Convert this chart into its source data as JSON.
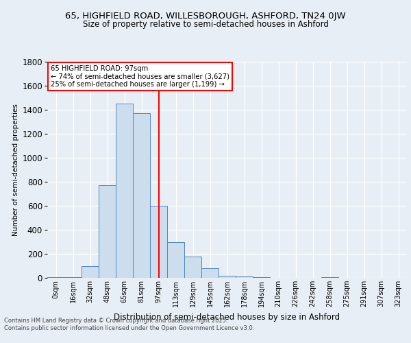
{
  "title_line1": "65, HIGHFIELD ROAD, WILLESBOROUGH, ASHFORD, TN24 0JW",
  "title_line2": "Size of property relative to semi-detached houses in Ashford",
  "xlabel": "Distribution of semi-detached houses by size in Ashford",
  "ylabel": "Number of semi-detached properties",
  "categories": [
    "0sqm",
    "16sqm",
    "32sqm",
    "48sqm",
    "65sqm",
    "81sqm",
    "97sqm",
    "113sqm",
    "129sqm",
    "145sqm",
    "162sqm",
    "178sqm",
    "194sqm",
    "210sqm",
    "226sqm",
    "242sqm",
    "258sqm",
    "275sqm",
    "291sqm",
    "307sqm",
    "323sqm"
  ],
  "bar_values": [
    4,
    4,
    100,
    770,
    1450,
    1370,
    600,
    300,
    175,
    80,
    20,
    10,
    4,
    0,
    0,
    0,
    4,
    0,
    0,
    0,
    0
  ],
  "bar_color": "#ccdded",
  "bar_edge_color": "#5588bb",
  "red_line_index": 6,
  "annotation_title": "65 HIGHFIELD ROAD: 97sqm",
  "annotation_line2": "← 74% of semi-detached houses are smaller (3,627)",
  "annotation_line3": "25% of semi-detached houses are larger (1,199) →",
  "ylim": [
    0,
    1800
  ],
  "yticks": [
    0,
    200,
    400,
    600,
    800,
    1000,
    1200,
    1400,
    1600,
    1800
  ],
  "bg_color": "#e8eef5",
  "plot_bg_color": "#e8eef5",
  "footer_line1": "Contains HM Land Registry data © Crown copyright and database right 2025.",
  "footer_line2": "Contains public sector information licensed under the Open Government Licence v3.0."
}
